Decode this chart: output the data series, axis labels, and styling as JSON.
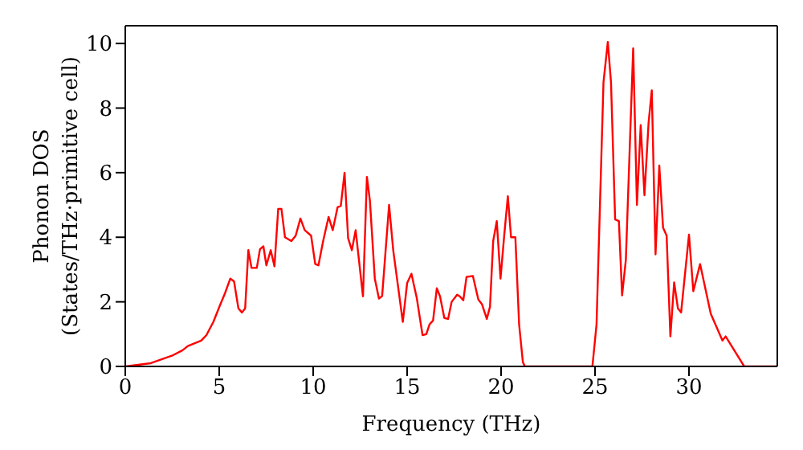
{
  "chart_data": {
    "type": "line",
    "xlabel": "Frequency (THz)",
    "ylabel": "Phonon DOS\n(States/THz·primitive cell)",
    "xlim": [
      0,
      34.7
    ],
    "xticks": [
      0,
      5,
      10,
      15,
      20,
      25,
      30
    ],
    "ylim": [
      0,
      10.55
    ],
    "yticks": [
      0,
      2,
      4,
      6,
      8,
      10
    ],
    "grid": false,
    "legend": false,
    "marker": "none",
    "line_style": "solid",
    "x": [
      0,
      1.36,
      2.48,
      3.05,
      3.33,
      4.04,
      4.32,
      4.69,
      5.03,
      5.31,
      5.59,
      5.79,
      6.02,
      6.21,
      6.38,
      6.55,
      6.72,
      7.0,
      7.17,
      7.35,
      7.51,
      7.74,
      7.94,
      8.14,
      8.31,
      8.5,
      8.84,
      9.07,
      9.32,
      9.55,
      9.89,
      10.11,
      10.28,
      10.53,
      10.82,
      11.04,
      11.3,
      11.47,
      11.67,
      11.86,
      12.06,
      12.26,
      12.65,
      12.86,
      13.02,
      13.28,
      13.5,
      13.67,
      14.04,
      14.26,
      14.77,
      15.0,
      15.23,
      15.51,
      15.82,
      16.02,
      16.19,
      16.38,
      16.58,
      16.75,
      16.98,
      17.18,
      17.37,
      17.66,
      17.8,
      17.99,
      18.16,
      18.5,
      18.79,
      18.98,
      19.24,
      19.41,
      19.58,
      19.77,
      19.97,
      20.17,
      20.36,
      20.53,
      20.76,
      20.96,
      21.16,
      21.27,
      24.86,
      25.08,
      25.45,
      25.68,
      25.85,
      26.07,
      26.27,
      26.44,
      26.64,
      27.03,
      27.23,
      27.43,
      27.63,
      27.85,
      28.02,
      28.22,
      28.42,
      28.62,
      28.81,
      29.01,
      29.21,
      29.41,
      29.58,
      30.0,
      30.23,
      30.59,
      31.16,
      31.78,
      31.95,
      32.94,
      34.7
    ],
    "series": [
      {
        "color": "#ff0000",
        "values": [
          0,
          0.1,
          0.33,
          0.5,
          0.63,
          0.8,
          0.97,
          1.38,
          1.88,
          2.27,
          2.72,
          2.63,
          1.8,
          1.67,
          1.8,
          3.6,
          3.05,
          3.05,
          3.63,
          3.72,
          3.13,
          3.6,
          3.1,
          4.88,
          4.88,
          4.0,
          3.88,
          4.05,
          4.58,
          4.22,
          4.05,
          3.17,
          3.13,
          3.88,
          4.63,
          4.22,
          4.93,
          4.97,
          6.0,
          3.97,
          3.6,
          4.22,
          2.17,
          5.87,
          5.13,
          2.72,
          2.1,
          2.18,
          5.0,
          3.6,
          1.38,
          2.58,
          2.87,
          2.13,
          0.97,
          1.0,
          1.3,
          1.42,
          2.42,
          2.17,
          1.5,
          1.47,
          2.0,
          2.22,
          2.17,
          2.05,
          2.77,
          2.8,
          2.07,
          1.93,
          1.47,
          1.85,
          3.88,
          4.5,
          2.72,
          4.08,
          5.27,
          4.0,
          4.0,
          1.3,
          0.13,
          0,
          0,
          1.3,
          8.8,
          10.05,
          8.8,
          4.55,
          4.5,
          2.2,
          3.3,
          9.85,
          5.0,
          7.47,
          5.3,
          7.55,
          8.55,
          3.47,
          6.22,
          4.3,
          4.05,
          0.93,
          2.6,
          1.8,
          1.67,
          4.08,
          2.33,
          3.17,
          1.63,
          0.8,
          0.93,
          0,
          0
        ]
      }
    ]
  }
}
